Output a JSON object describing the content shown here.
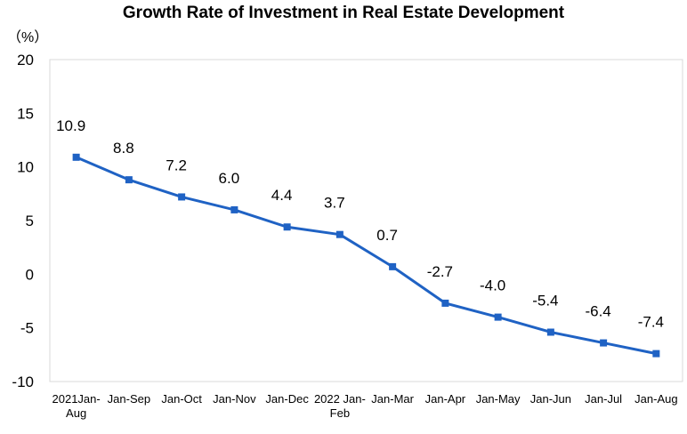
{
  "chart_data": {
    "type": "line",
    "title": "Growth Rate of Investment in Real Estate Development",
    "ylabel": "（%）",
    "xlabel": "",
    "ylim": [
      -10,
      20
    ],
    "yticks": [
      20,
      15,
      10,
      5,
      0,
      -5,
      -10
    ],
    "grid": false,
    "legend": "none",
    "line_color": "#1F62C4",
    "categories": [
      [
        "2021Jan-",
        "Aug"
      ],
      [
        "Jan-Sep"
      ],
      [
        "Jan-Oct"
      ],
      [
        "Jan-Nov"
      ],
      [
        "Jan-Dec"
      ],
      [
        "2022 Jan-",
        "Feb"
      ],
      [
        "Jan-Mar"
      ],
      [
        "Jan-Apr"
      ],
      [
        "Jan-May"
      ],
      [
        "Jan-Jun"
      ],
      [
        "Jan-Jul"
      ],
      [
        "Jan-Aug"
      ]
    ],
    "values": [
      10.9,
      8.8,
      7.2,
      6.0,
      4.4,
      3.7,
      0.7,
      -2.7,
      -4.0,
      -5.4,
      -6.4,
      -7.4
    ],
    "data_labels": [
      "10.9",
      "8.8",
      "7.2",
      "6.0",
      "4.4",
      "3.7",
      "0.7",
      "-2.7",
      "-4.0",
      "-5.4",
      "-6.4",
      "-7.4"
    ]
  }
}
